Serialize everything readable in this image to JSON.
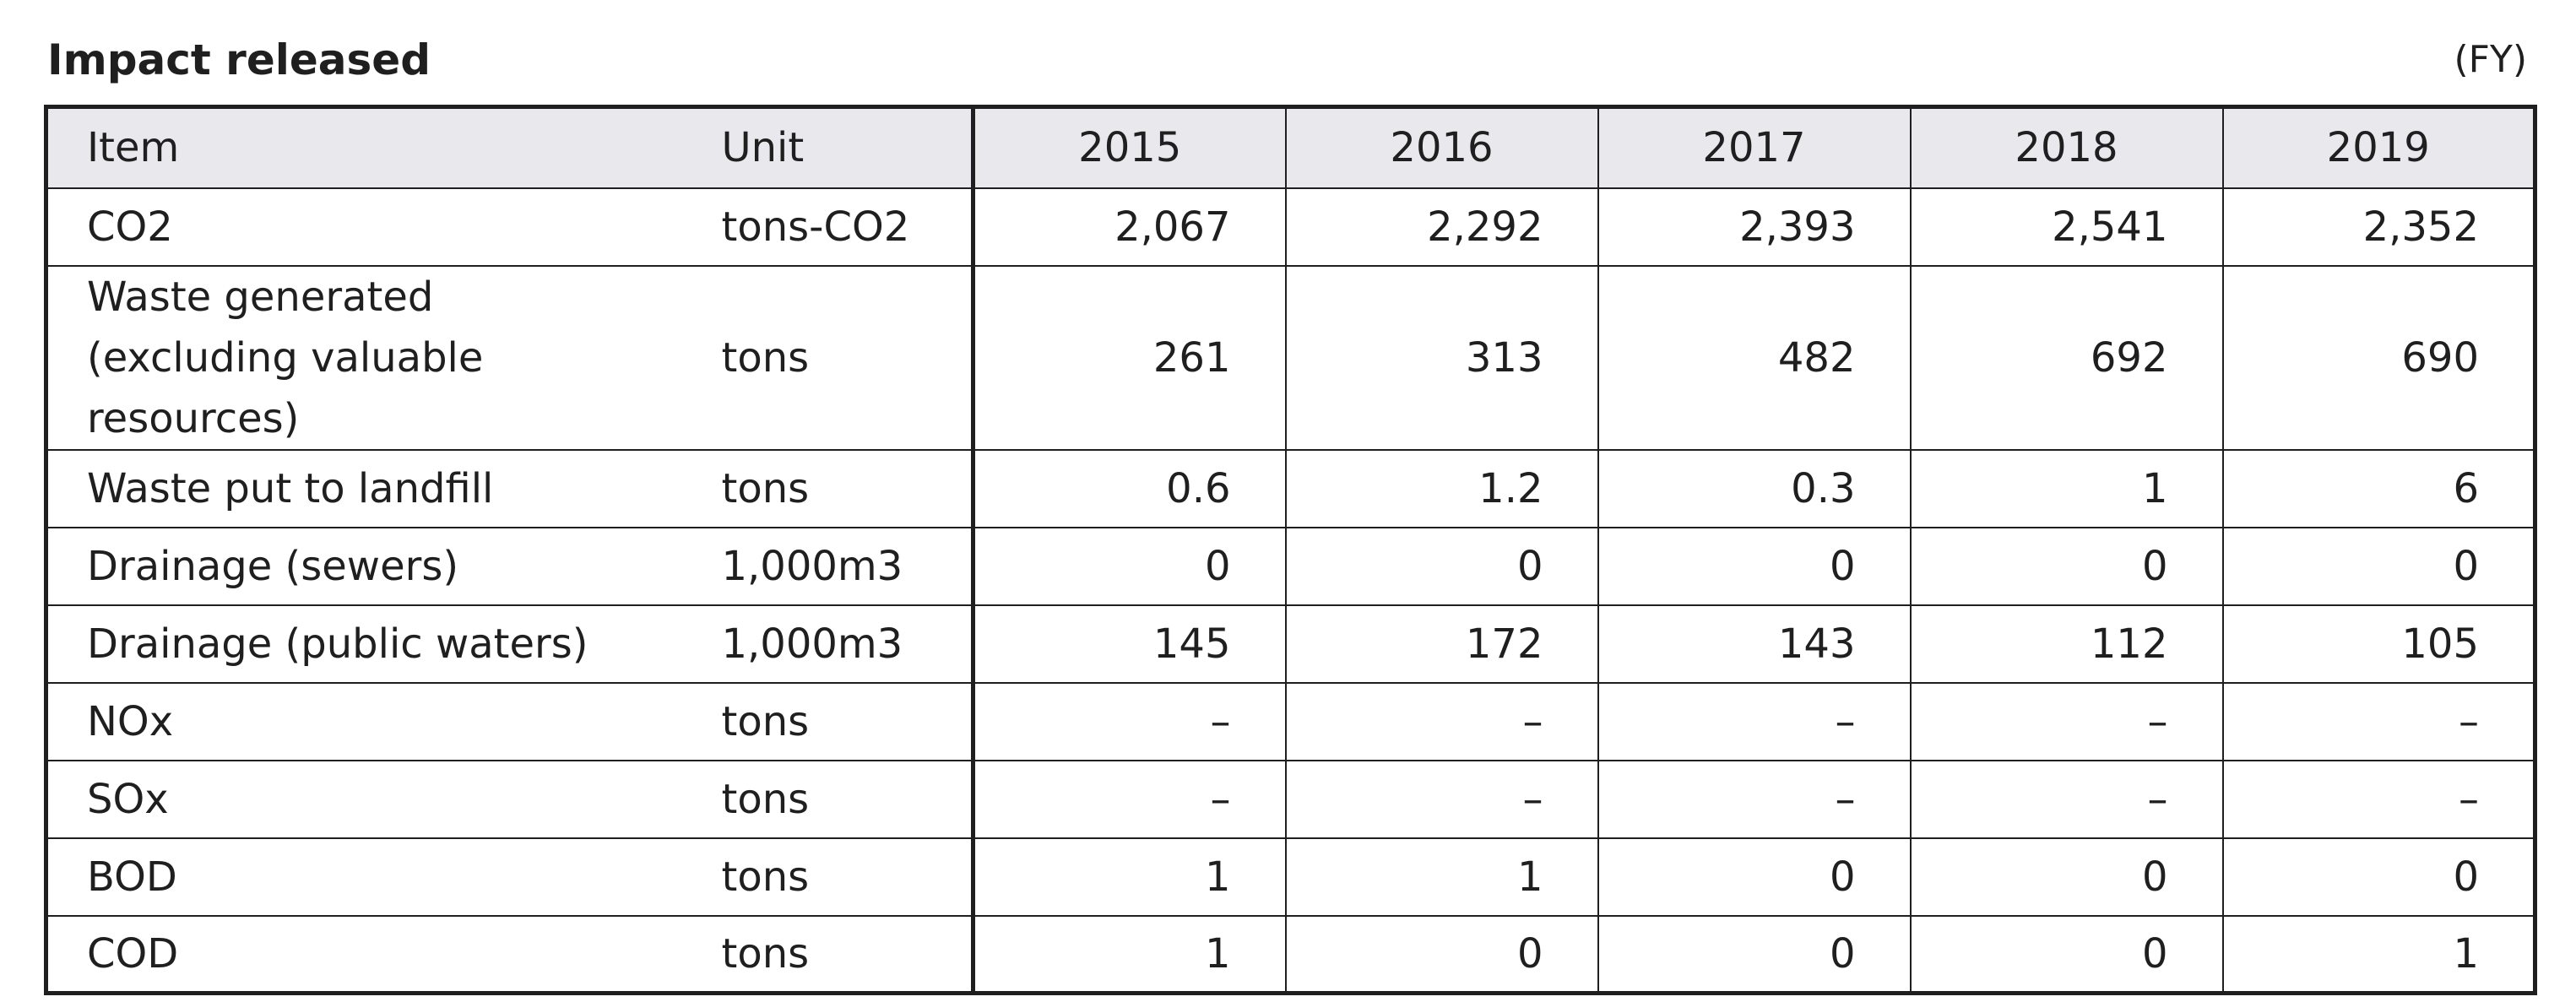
{
  "title": "Impact released",
  "note": "(FY)",
  "table": {
    "headers": [
      "Item",
      "Unit",
      "2015",
      "2016",
      "2017",
      "2018",
      "2019"
    ],
    "rows": [
      {
        "item": "CO2",
        "unit": "tons-CO2",
        "values": [
          "2,067",
          "2,292",
          "2,393",
          "2,541",
          "2,352"
        ]
      },
      {
        "item_lines": [
          "Waste generated",
          "(excluding valuable resources)"
        ],
        "unit": "tons",
        "values": [
          "261",
          "313",
          "482",
          "692",
          "690"
        ]
      },
      {
        "item": "Waste put to landfill",
        "unit": "tons",
        "values": [
          "0.6",
          "1.2",
          "0.3",
          "1",
          "6"
        ]
      },
      {
        "item": "Drainage (sewers)",
        "unit": "1,000m3",
        "values": [
          "0",
          "0",
          "0",
          "0",
          "0"
        ]
      },
      {
        "item": "Drainage (public waters)",
        "unit": "1,000m3",
        "values": [
          "145",
          "172",
          "143",
          "112",
          "105"
        ]
      },
      {
        "item": "NOx",
        "unit": "tons",
        "values": [
          "–",
          "–",
          "–",
          "–",
          "–"
        ]
      },
      {
        "item": "SOx",
        "unit": "tons",
        "values": [
          "–",
          "–",
          "–",
          "–",
          "–"
        ]
      },
      {
        "item": "BOD",
        "unit": "tons",
        "values": [
          "1",
          "1",
          "0",
          "0",
          "0"
        ]
      },
      {
        "item": "COD",
        "unit": "tons",
        "values": [
          "1",
          "0",
          "0",
          "0",
          "1"
        ]
      }
    ]
  }
}
